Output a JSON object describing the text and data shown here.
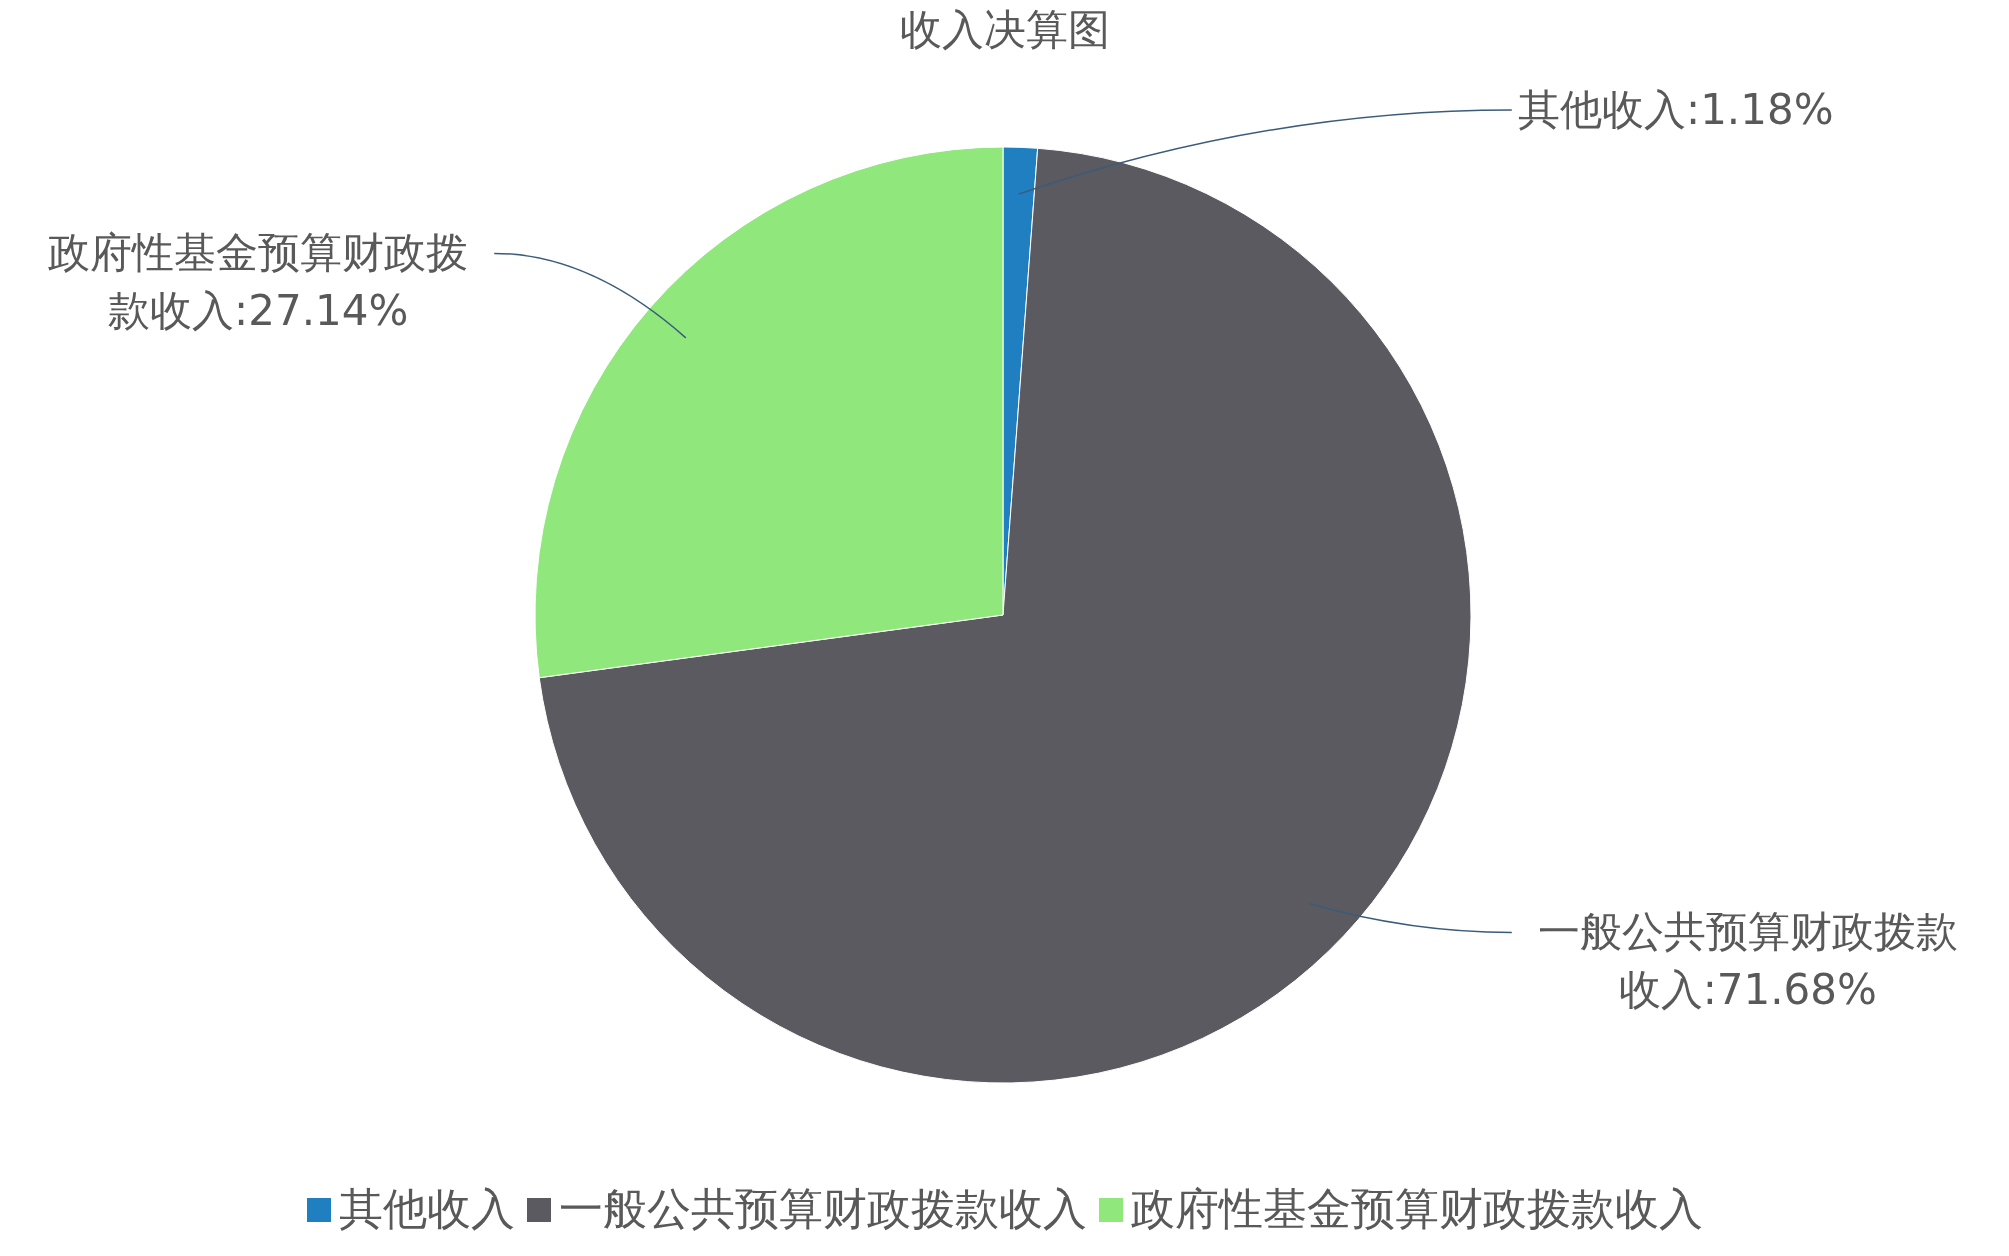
{
  "chart_data": {
    "type": "pie",
    "title": "收入决算图",
    "categories": [
      "其他收入",
      "一般公共预算财政拨款收入",
      "政府性基金预算财政拨款收入"
    ],
    "values": [
      1.18,
      71.68,
      27.14
    ],
    "colors": [
      "#1f7fc0",
      "#5b5a60",
      "#90e87c"
    ],
    "value_labels": [
      ":1.18%",
      ":71.68%",
      ":27.14%"
    ],
    "legend": "bottom"
  }
}
